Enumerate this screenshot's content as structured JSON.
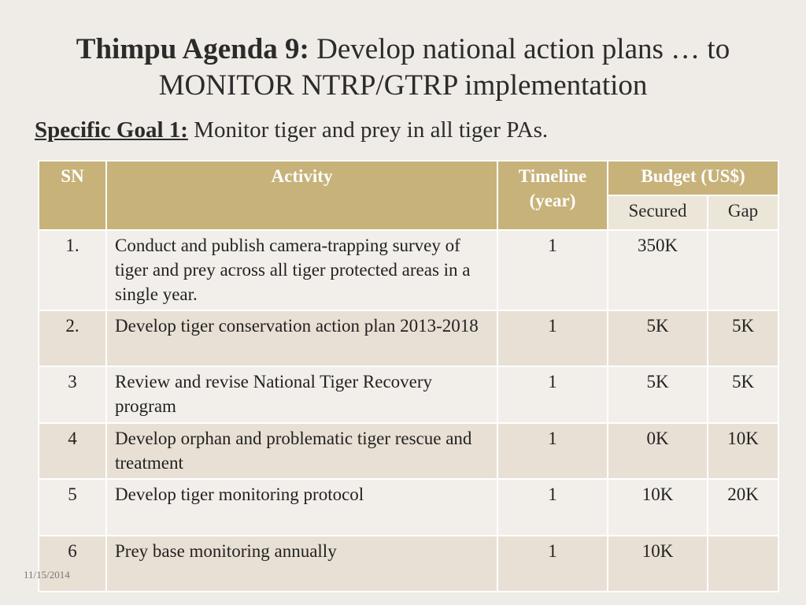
{
  "title": {
    "bold": "Thimpu Agenda 9:",
    "rest_line1": " Develop national action plans … to",
    "line2": "MONITOR NTRP/GTRP implementation"
  },
  "goal": {
    "label": "Specific Goal 1:",
    "text": " Monitor tiger and prey in all tiger PAs."
  },
  "table": {
    "headers": {
      "sn": "SN",
      "activity": "Activity",
      "timeline": "Timeline (year)",
      "budget": "Budget (US$)",
      "secured": "Secured",
      "gap": "Gap"
    },
    "rows": [
      {
        "sn": "1.",
        "activity": "Conduct and publish camera-trapping survey of tiger and prey across all tiger protected areas in a single year.",
        "timeline": "1",
        "secured": "350K",
        "gap": ""
      },
      {
        "sn": "2.",
        "activity": "Develop tiger conservation action plan 2013-2018",
        "timeline": "1",
        "secured": "5K",
        "gap": "5K"
      },
      {
        "sn": "3",
        "activity": "Review and revise National Tiger Recovery program",
        "timeline": "1",
        "secured": "5K",
        "gap": "5K"
      },
      {
        "sn": "4",
        "activity": "Develop orphan and problematic tiger rescue and treatment",
        "timeline": "1",
        "secured": "0K",
        "gap": "10K"
      },
      {
        "sn": "5",
        "activity": "Develop tiger monitoring protocol",
        "timeline": "1",
        "secured": "10K",
        "gap": "20K"
      },
      {
        "sn": "6",
        "activity": "Prey base monitoring annually",
        "timeline": "1",
        "secured": "10K",
        "gap": ""
      }
    ]
  },
  "footer": {
    "date": "11/15/2014"
  }
}
